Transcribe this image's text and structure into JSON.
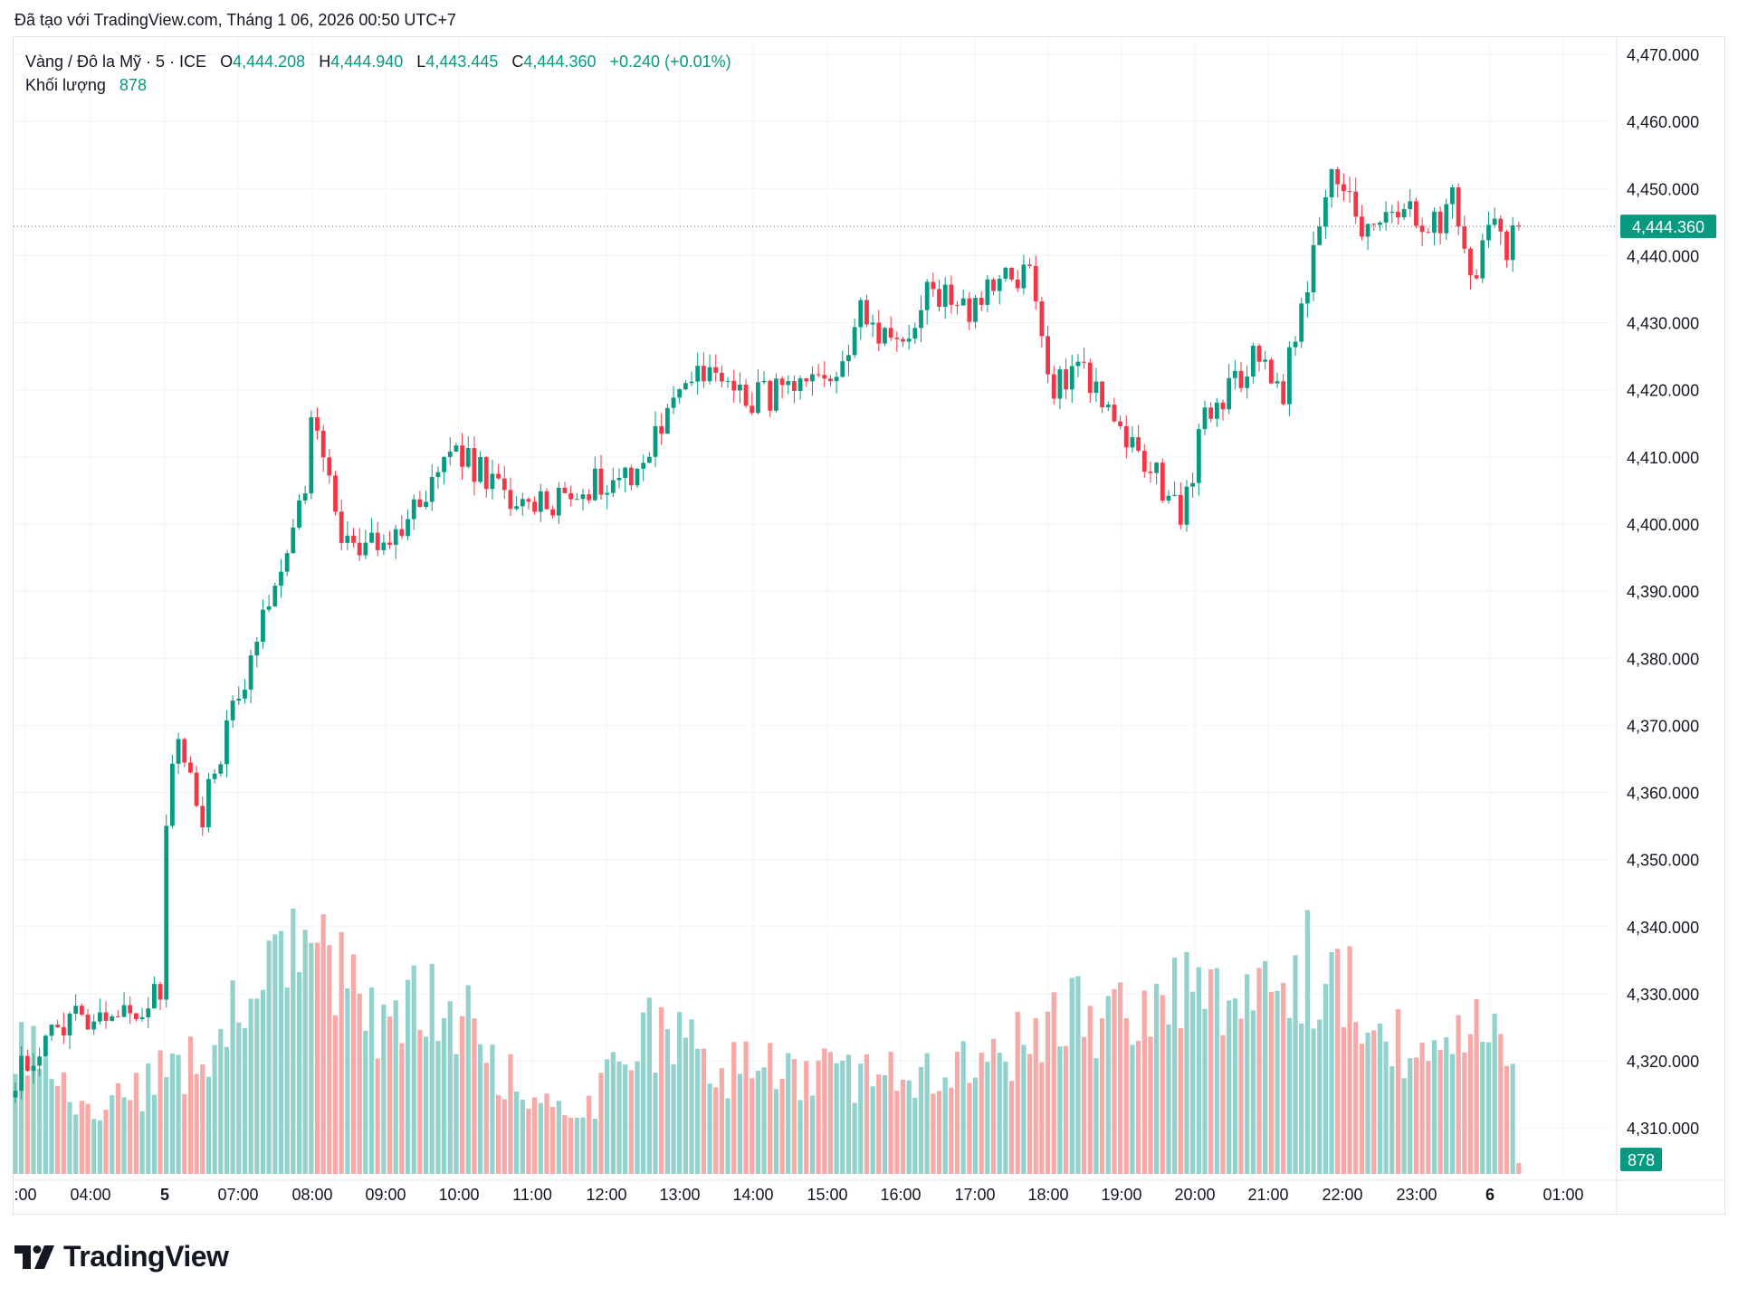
{
  "header": {
    "created_text": "Đã tạo với TradingView.com, Tháng 1 06, 2026 00:50 UTC+7"
  },
  "legend": {
    "symbol": "Vàng / Đô la Mỹ · 5 · ICE",
    "open_label": "O",
    "open": "4,444.208",
    "high_label": "H",
    "high": "4,444.940",
    "low_label": "L",
    "low": "4,443.445",
    "close_label": "C",
    "close": "4,444.360",
    "change": "+0.240 (+0.01%)",
    "volume_label": "Khối lượng",
    "volume": "878"
  },
  "footer": {
    "brand": "TradingView",
    "logo_icon": "tradingview-logo-icon"
  },
  "colors": {
    "up": "#089981",
    "down": "#f23645",
    "up_volume": "#92d2cc",
    "down_volume": "#f7a9a7",
    "grid": "#f0f3fa",
    "axis_text": "#131722"
  },
  "chart_data": {
    "type": "candlestick",
    "symbol": "Vàng / Đô la Mỹ",
    "interval": "5",
    "ylim": [
      4302,
      4472
    ],
    "y_ticks": [
      "4,470.000",
      "4,460.000",
      "4,450.000",
      "4,440.000",
      "4,430.000",
      "4,420.000",
      "4,410.000",
      "4,400.000",
      "4,390.000",
      "4,380.000",
      "4,370.000",
      "4,360.000",
      "4,350.000",
      "4,340.000",
      "4,330.000",
      "4,320.000",
      "4,310.000"
    ],
    "x_ticks": [
      ":00",
      "04:00",
      "5",
      "07:00",
      "08:00",
      "09:00",
      "10:00",
      "11:00",
      "12:00",
      "13:00",
      "14:00",
      "15:00",
      "16:00",
      "17:00",
      "18:00",
      "19:00",
      "20:00",
      "21:00",
      "22:00",
      "23:00",
      "6",
      "01:00"
    ],
    "last_price": "4,444.360",
    "last_volume": "878",
    "bar_count": 250,
    "waypoints": [
      {
        "bar": 0,
        "price": 4318
      },
      {
        "bar": 10,
        "price": 4327
      },
      {
        "bar": 22,
        "price": 4328
      },
      {
        "bar": 24,
        "price": 4330
      },
      {
        "bar": 25,
        "price": 4355
      },
      {
        "bar": 27,
        "price": 4369
      },
      {
        "bar": 31,
        "price": 4357
      },
      {
        "bar": 36,
        "price": 4372
      },
      {
        "bar": 44,
        "price": 4395
      },
      {
        "bar": 48,
        "price": 4404
      },
      {
        "bar": 49,
        "price": 4416
      },
      {
        "bar": 54,
        "price": 4398
      },
      {
        "bar": 60,
        "price": 4396
      },
      {
        "bar": 66,
        "price": 4402
      },
      {
        "bar": 72,
        "price": 4411
      },
      {
        "bar": 78,
        "price": 4407
      },
      {
        "bar": 84,
        "price": 4402
      },
      {
        "bar": 96,
        "price": 4406
      },
      {
        "bar": 104,
        "price": 4409
      },
      {
        "bar": 110,
        "price": 4421
      },
      {
        "bar": 116,
        "price": 4422
      },
      {
        "bar": 122,
        "price": 4419
      },
      {
        "bar": 134,
        "price": 4420
      },
      {
        "bar": 140,
        "price": 4431
      },
      {
        "bar": 146,
        "price": 4427
      },
      {
        "bar": 152,
        "price": 4435
      },
      {
        "bar": 158,
        "price": 4432
      },
      {
        "bar": 164,
        "price": 4436
      },
      {
        "bar": 168,
        "price": 4437
      },
      {
        "bar": 172,
        "price": 4420
      },
      {
        "bar": 176,
        "price": 4425
      },
      {
        "bar": 182,
        "price": 4415
      },
      {
        "bar": 188,
        "price": 4408
      },
      {
        "bar": 193,
        "price": 4402
      },
      {
        "bar": 197,
        "price": 4415
      },
      {
        "bar": 205,
        "price": 4425
      },
      {
        "bar": 210,
        "price": 4420
      },
      {
        "bar": 215,
        "price": 4440
      },
      {
        "bar": 218,
        "price": 4452
      },
      {
        "bar": 224,
        "price": 4443
      },
      {
        "bar": 230,
        "price": 4446
      },
      {
        "bar": 236,
        "price": 4445
      },
      {
        "bar": 238,
        "price": 4452
      },
      {
        "bar": 241,
        "price": 4435
      },
      {
        "bar": 244,
        "price": 4446
      },
      {
        "bar": 247,
        "price": 4440
      },
      {
        "bar": 249,
        "price": 4444.36
      }
    ],
    "volume_profile": [
      {
        "bar": 0,
        "volume": 25
      },
      {
        "bar": 12,
        "volume": 10
      },
      {
        "bar": 24,
        "volume": 18
      },
      {
        "bar": 32,
        "volume": 23
      },
      {
        "bar": 48,
        "volume": 42
      },
      {
        "bar": 60,
        "volume": 30
      },
      {
        "bar": 72,
        "volume": 32
      },
      {
        "bar": 84,
        "volume": 14
      },
      {
        "bar": 96,
        "volume": 13
      },
      {
        "bar": 104,
        "volume": 26
      },
      {
        "bar": 116,
        "volume": 20
      },
      {
        "bar": 140,
        "volume": 18
      },
      {
        "bar": 160,
        "volume": 20
      },
      {
        "bar": 172,
        "volume": 28
      },
      {
        "bar": 190,
        "volume": 30
      },
      {
        "bar": 200,
        "volume": 34
      },
      {
        "bar": 212,
        "volume": 40
      },
      {
        "bar": 224,
        "volume": 30
      },
      {
        "bar": 236,
        "volume": 20
      },
      {
        "bar": 242,
        "volume": 28
      },
      {
        "bar": 248,
        "volume": 22
      }
    ]
  }
}
